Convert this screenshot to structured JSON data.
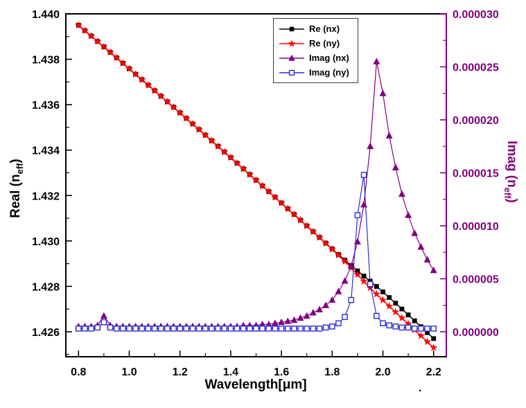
{
  "colors": {
    "axis": "#000000",
    "right_axis": "#800080",
    "background": "#ffffff"
  },
  "stray_dot": ".",
  "chart_data": {
    "type": "line",
    "title": "",
    "xlabel": "Wavelength[μm]",
    "ylabel_left": {
      "pre": "Real (n",
      "sub": "eff",
      "post": ")"
    },
    "ylabel_right": {
      "pre": "Imag (n",
      "sub": "eff",
      "post": ")"
    },
    "xlim": [
      0.75,
      2.25
    ],
    "ylim_left": [
      1.4249,
      1.44
    ],
    "ylim_right": [
      -2.3571e-06,
      3e-05
    ],
    "grid": false,
    "legend_position": "top-center",
    "x_ticks": [
      0.8,
      1.0,
      1.2,
      1.4,
      1.6,
      1.8,
      2.0,
      2.2
    ],
    "x_tick_labels": [
      "0.8",
      "1.0",
      "1.2",
      "1.4",
      "1.6",
      "1.8",
      "2.0",
      "2.2"
    ],
    "x_minor_ticks": [
      0.9,
      1.1,
      1.3,
      1.5,
      1.7,
      1.9,
      2.1
    ],
    "y_ticks_left": [
      1.426,
      1.428,
      1.43,
      1.432,
      1.434,
      1.436,
      1.438,
      1.44
    ],
    "y_tick_labels_left": [
      "1.426",
      "1.428",
      "1.430",
      "1.432",
      "1.434",
      "1.436",
      "1.438",
      "1.440"
    ],
    "y_minor_ticks_left": [
      1.425,
      1.427,
      1.429,
      1.431,
      1.433,
      1.435,
      1.437,
      1.439
    ],
    "y_ticks_right": [
      0,
      5e-06,
      1e-05,
      1.5e-05,
      2e-05,
      2.5e-05,
      3e-05
    ],
    "y_tick_labels_right": [
      "0.000000",
      "0.000005",
      "0.000010",
      "0.000015",
      "0.000020",
      "0.000025",
      "0.000030"
    ],
    "y_minor_ticks_right": [
      2.5e-06,
      7.5e-06,
      1.25e-05,
      1.75e-05,
      2.25e-05,
      2.75e-05
    ],
    "x": [
      0.8,
      0.825,
      0.85,
      0.875,
      0.9,
      0.925,
      0.95,
      0.975,
      1.0,
      1.025,
      1.05,
      1.075,
      1.1,
      1.125,
      1.15,
      1.175,
      1.2,
      1.225,
      1.25,
      1.275,
      1.3,
      1.325,
      1.35,
      1.375,
      1.4,
      1.425,
      1.45,
      1.475,
      1.5,
      1.525,
      1.55,
      1.575,
      1.6,
      1.625,
      1.65,
      1.675,
      1.7,
      1.725,
      1.75,
      1.775,
      1.8,
      1.825,
      1.85,
      1.875,
      1.9,
      1.925,
      1.95,
      1.975,
      2.0,
      2.025,
      2.05,
      2.075,
      2.1,
      2.125,
      2.15,
      2.175,
      2.2
    ],
    "series": [
      {
        "id": "re-nx",
        "name": "Re (nx)",
        "axis": "left",
        "color": "#000000",
        "marker": "square-filled",
        "values": [
          1.4395,
          1.439262,
          1.439024,
          1.438785,
          1.438546,
          1.438307,
          1.438067,
          1.437826,
          1.437586,
          1.437344,
          1.437103,
          1.43686,
          1.436618,
          1.436374,
          1.436131,
          1.435887,
          1.435643,
          1.435398,
          1.435153,
          1.434906,
          1.434661,
          1.434414,
          1.434167,
          1.433919,
          1.433671,
          1.433423,
          1.433174,
          1.432924,
          1.432675,
          1.432424,
          1.432174,
          1.431923,
          1.431672,
          1.431419,
          1.431167,
          1.430914,
          1.430662,
          1.430408,
          1.430155,
          1.429902,
          1.42965,
          1.4294,
          1.429155,
          1.428914,
          1.428682,
          1.428454,
          1.428227,
          1.427995,
          1.427756,
          1.427509,
          1.427258,
          1.427002,
          1.426744,
          1.426483,
          1.426223,
          1.425962,
          1.4257
        ]
      },
      {
        "id": "re-ny",
        "name": "Re (ny)",
        "axis": "left",
        "color": "#ff0000",
        "marker": "star",
        "values": [
          1.4395,
          1.439262,
          1.439024,
          1.438785,
          1.438546,
          1.438307,
          1.438067,
          1.437826,
          1.437586,
          1.437344,
          1.437103,
          1.43686,
          1.436618,
          1.436374,
          1.436131,
          1.435887,
          1.435643,
          1.435398,
          1.435153,
          1.434906,
          1.434661,
          1.434414,
          1.434167,
          1.433919,
          1.433671,
          1.433423,
          1.433174,
          1.432924,
          1.432675,
          1.432424,
          1.432174,
          1.431923,
          1.431672,
          1.431419,
          1.431167,
          1.430914,
          1.43066,
          1.430406,
          1.430152,
          1.429895,
          1.429636,
          1.429372,
          1.429099,
          1.428813,
          1.428518,
          1.428221,
          1.427935,
          1.427659,
          1.427393,
          1.427129,
          1.426868,
          1.426608,
          1.426347,
          1.426085,
          1.425824,
          1.425562,
          1.4253
        ]
      },
      {
        "id": "imag-nx",
        "name": "Imag (nx)",
        "axis": "right",
        "color": "#800080",
        "marker": "triangle-filled",
        "values": [
          5e-07,
          5e-07,
          5e-07,
          6e-07,
          1.5e-06,
          6e-07,
          5e-07,
          5e-07,
          5e-07,
          5e-07,
          5e-07,
          5e-07,
          5e-07,
          5e-07,
          5e-07,
          5e-07,
          5e-07,
          5e-07,
          5e-07,
          5e-07,
          5e-07,
          5e-07,
          5e-07,
          5e-07,
          5e-07,
          5e-07,
          6e-07,
          6e-07,
          6e-07,
          7e-07,
          7e-07,
          8e-07,
          9e-07,
          1e-06,
          1.1e-06,
          1.3e-06,
          1.5e-06,
          1.8e-06,
          2.1e-06,
          2.5e-06,
          3e-06,
          3.8e-06,
          4.8e-06,
          6.2e-06,
          8.5e-06,
          1.2e-05,
          1.75e-05,
          2.55e-05,
          2.25e-05,
          1.85e-05,
          1.55e-05,
          1.3e-05,
          1.1e-05,
          9.3e-06,
          8e-06,
          6.8e-06,
          5.8e-06
        ]
      },
      {
        "id": "imag-ny",
        "name": "Imag (ny)",
        "axis": "right",
        "color": "#2a2ad5",
        "marker": "square-open",
        "values": [
          3e-07,
          3e-07,
          3e-07,
          4e-07,
          9e-07,
          4e-07,
          3e-07,
          3e-07,
          3e-07,
          3e-07,
          3e-07,
          3e-07,
          3e-07,
          3e-07,
          3e-07,
          3e-07,
          3e-07,
          3e-07,
          3e-07,
          3e-07,
          3e-07,
          3e-07,
          3e-07,
          3e-07,
          3e-07,
          3e-07,
          3e-07,
          3e-07,
          3e-07,
          3e-07,
          3e-07,
          3e-07,
          3e-07,
          3e-07,
          3e-07,
          3e-07,
          3e-07,
          3e-07,
          3e-07,
          4e-07,
          5e-07,
          8e-07,
          1.4e-06,
          3e-06,
          1.1e-05,
          1.48e-05,
          4.5e-06,
          1.5e-06,
          8e-07,
          6e-07,
          5e-07,
          4e-07,
          4e-07,
          3e-07,
          3e-07,
          3e-07,
          3e-07
        ]
      }
    ]
  }
}
